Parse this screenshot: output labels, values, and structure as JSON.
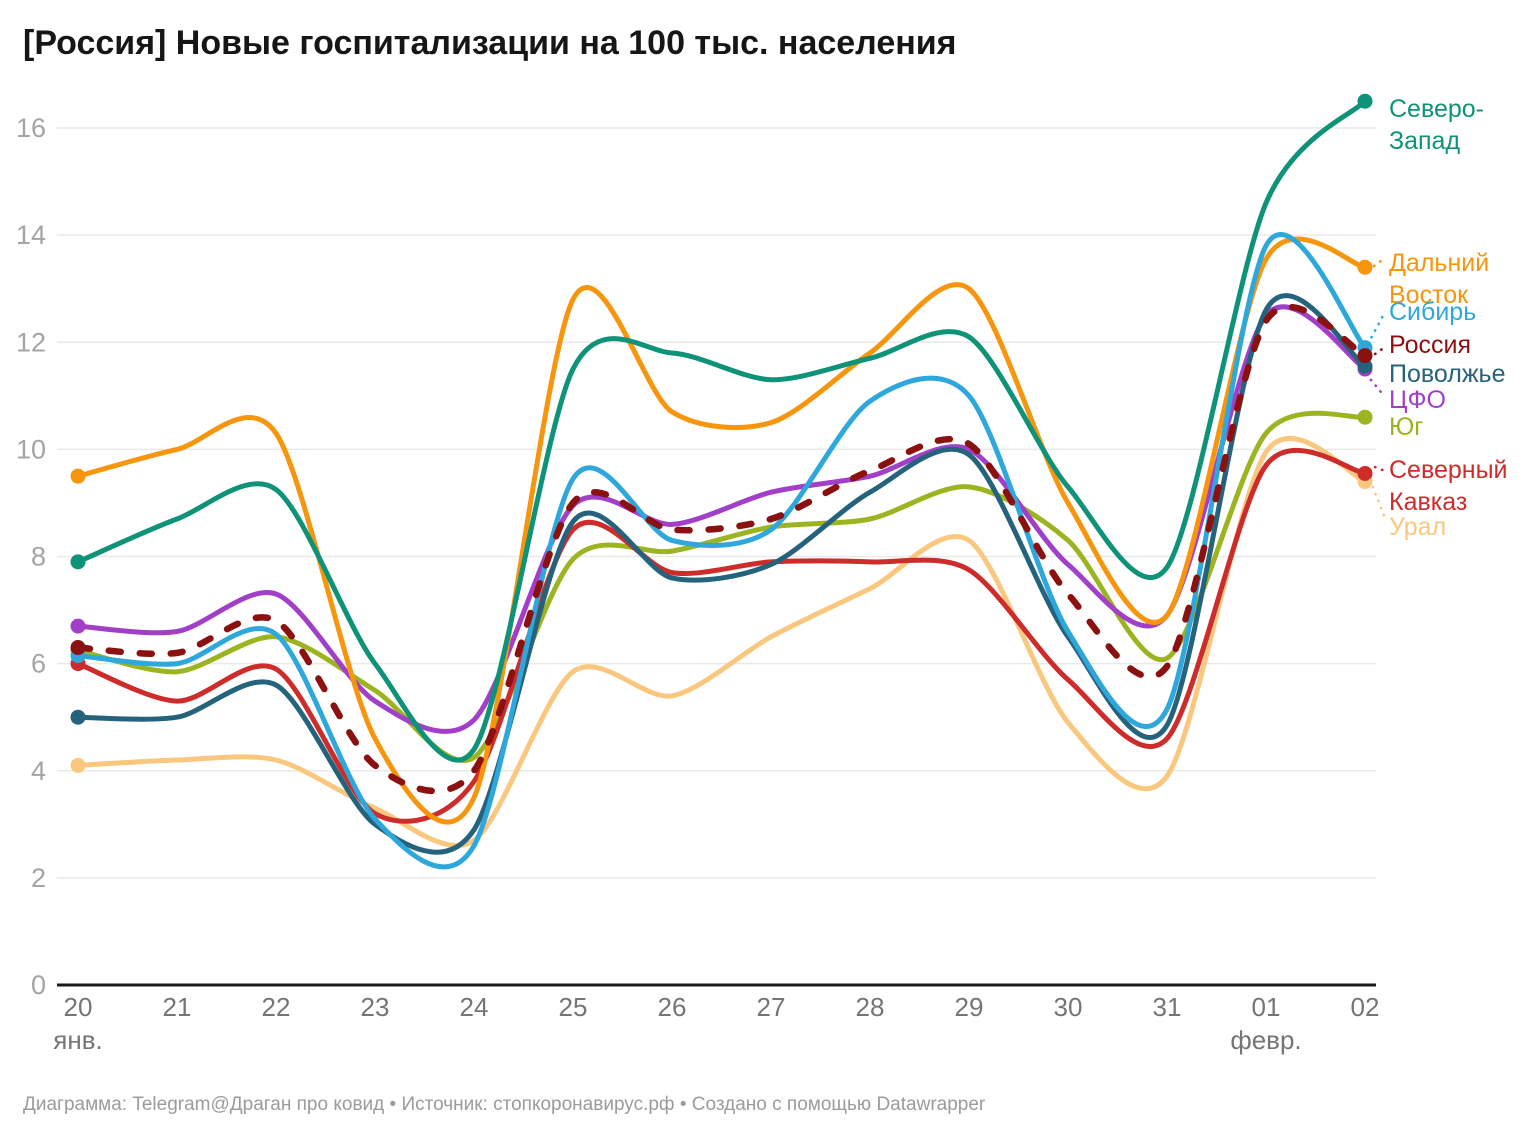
{
  "title": "[Россия] Новые госпитализации на 100 тыс. населения",
  "footer": "Диаграмма: Telegram@Драган про ковид • Источник: стопкоронавирус.рф • Создано с помощью Datawrapper",
  "chart_data": {
    "type": "line",
    "title": "[Россия] Новые госпитализации на 100 тыс. населения",
    "xlabel": "",
    "ylabel": "",
    "ylim": [
      0,
      16
    ],
    "yticks": [
      0,
      2,
      4,
      6,
      8,
      10,
      12,
      14,
      16
    ],
    "grid": true,
    "legend_position": "right-edge-labels",
    "x": [
      "20",
      "21",
      "22",
      "23",
      "24",
      "25",
      "26",
      "27",
      "28",
      "29",
      "30",
      "31",
      "01",
      "02"
    ],
    "x_month_labels": [
      {
        "index": 0,
        "label": "янв."
      },
      {
        "index": 12,
        "label": "февр."
      }
    ],
    "series": [
      {
        "id": "sz",
        "name": "Северо-Запад",
        "label_lines": [
          "Северо-",
          "Запад"
        ],
        "color": "#0e9378",
        "dashed": false,
        "values": [
          7.9,
          8.7,
          9.25,
          6.0,
          4.4,
          11.5,
          11.8,
          11.3,
          11.7,
          12.1,
          9.3,
          7.8,
          14.6,
          16.5
        ]
      },
      {
        "id": "dv",
        "name": "Дальний Восток",
        "label_lines": [
          "Дальний",
          "Восток"
        ],
        "color": "#f7950d",
        "dashed": false,
        "values": [
          9.5,
          10.0,
          10.3,
          4.6,
          3.5,
          12.8,
          10.7,
          10.5,
          11.8,
          13.0,
          9.0,
          6.9,
          13.55,
          13.4
        ]
      },
      {
        "id": "sib",
        "name": "Сибирь",
        "label_lines": [
          "Сибирь"
        ],
        "color": "#2ea8dc",
        "dashed": false,
        "values": [
          6.15,
          6.0,
          6.55,
          3.1,
          2.6,
          9.45,
          8.3,
          8.5,
          10.9,
          11.0,
          6.6,
          5.15,
          13.8,
          11.9
        ]
      },
      {
        "id": "rus",
        "name": "Россия",
        "label_lines": [
          "Россия"
        ],
        "color": "#8b1010",
        "dashed": true,
        "values": [
          6.3,
          6.2,
          6.8,
          4.1,
          4.0,
          9.0,
          8.5,
          8.7,
          9.6,
          10.1,
          7.3,
          5.95,
          12.4,
          11.75
        ]
      },
      {
        "id": "pov",
        "name": "Поволжье",
        "label_lines": [
          "Поволжье"
        ],
        "color": "#25637c",
        "dashed": false,
        "values": [
          5.0,
          5.0,
          5.6,
          3.0,
          2.9,
          8.65,
          7.6,
          7.85,
          9.2,
          9.9,
          6.5,
          4.85,
          12.6,
          11.55
        ]
      },
      {
        "id": "cfo",
        "name": "ЦФО",
        "label_lines": [
          "ЦФО"
        ],
        "color": "#a23fc9",
        "dashed": false,
        "values": [
          6.7,
          6.6,
          7.3,
          5.3,
          4.95,
          8.95,
          8.6,
          9.2,
          9.5,
          10.0,
          7.85,
          6.9,
          12.5,
          11.5
        ]
      },
      {
        "id": "yug",
        "name": "Юг",
        "label_lines": [
          "Юг"
        ],
        "color": "#9cb420",
        "dashed": false,
        "values": [
          6.25,
          5.85,
          6.5,
          5.5,
          4.25,
          7.95,
          8.1,
          8.55,
          8.7,
          9.3,
          8.3,
          6.1,
          10.3,
          10.6
        ]
      },
      {
        "id": "kav",
        "name": "Северный Кавказ",
        "label_lines": [
          "Северный",
          "Кавказ"
        ],
        "color": "#ce2b2b",
        "dashed": false,
        "values": [
          6.0,
          5.3,
          5.9,
          3.2,
          3.8,
          8.5,
          7.7,
          7.9,
          7.9,
          7.75,
          5.7,
          4.6,
          9.7,
          9.55
        ]
      },
      {
        "id": "ural",
        "name": "Урал",
        "label_lines": [
          "Урал"
        ],
        "color": "#fac77f",
        "dashed": false,
        "values": [
          4.1,
          4.2,
          4.2,
          3.3,
          2.7,
          5.85,
          5.4,
          6.5,
          7.4,
          8.3,
          4.9,
          3.9,
          9.95,
          9.4
        ]
      }
    ],
    "colors": {
      "grid": "#e9e9e9",
      "axis": "#1b1b1b",
      "y_tick_text": "#a4a4a4",
      "x_tick_text": "#757575",
      "title_text": "#161616",
      "footer_text": "#9b9b9b"
    }
  }
}
